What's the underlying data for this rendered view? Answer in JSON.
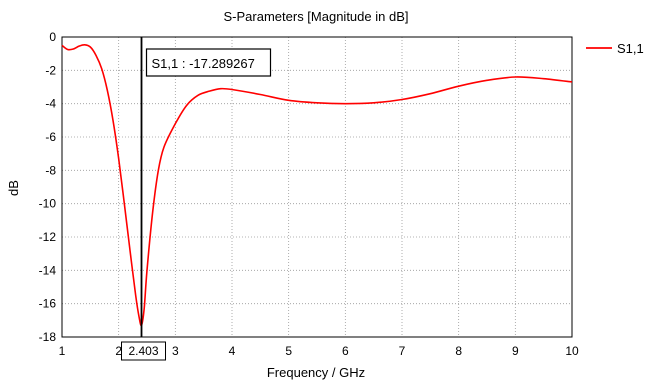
{
  "colors": {
    "curve": "#ff0000",
    "marker_line": "#000000",
    "grid": "#9a9a9a",
    "background": "#ffffff"
  },
  "chart_data": {
    "type": "line",
    "title": "S-Parameters [Magnitude in dB]",
    "xlabel": "Frequency / GHz",
    "ylabel": "dB",
    "xlim": [
      1,
      10
    ],
    "ylim": [
      -18,
      0
    ],
    "x_ticks": [
      1,
      2,
      3,
      4,
      5,
      6,
      7,
      8,
      9,
      10
    ],
    "y_ticks": [
      0,
      -2,
      -4,
      -6,
      -8,
      -10,
      -12,
      -14,
      -16,
      -18
    ],
    "grid": true,
    "legend": {
      "position": "right",
      "entries": [
        "S1,1"
      ]
    },
    "series": [
      {
        "name": "S1,1",
        "x": [
          1.0,
          1.1,
          1.2,
          1.3,
          1.4,
          1.5,
          1.6,
          1.7,
          1.8,
          1.9,
          2.0,
          2.1,
          2.2,
          2.3,
          2.36,
          2.403,
          2.45,
          2.5,
          2.6,
          2.7,
          2.8,
          3.0,
          3.2,
          3.4,
          3.6,
          3.8,
          4.0,
          4.5,
          5.0,
          5.5,
          6.0,
          6.5,
          7.0,
          7.5,
          8.0,
          8.5,
          9.0,
          9.5,
          10.0
        ],
        "y": [
          -0.5,
          -0.75,
          -0.72,
          -0.55,
          -0.47,
          -0.6,
          -1.1,
          -1.9,
          -3.2,
          -5.0,
          -7.3,
          -10.0,
          -12.8,
          -15.5,
          -16.8,
          -17.29,
          -16.3,
          -14.0,
          -10.5,
          -8.0,
          -6.6,
          -5.2,
          -4.1,
          -3.5,
          -3.25,
          -3.1,
          -3.15,
          -3.45,
          -3.8,
          -3.95,
          -4.0,
          -3.95,
          -3.75,
          -3.4,
          -2.95,
          -2.6,
          -2.4,
          -2.5,
          -2.7
        ]
      }
    ],
    "marker": {
      "x": 2.403,
      "label": "S1,1 : -17.289267",
      "x_label": "2.403"
    }
  }
}
